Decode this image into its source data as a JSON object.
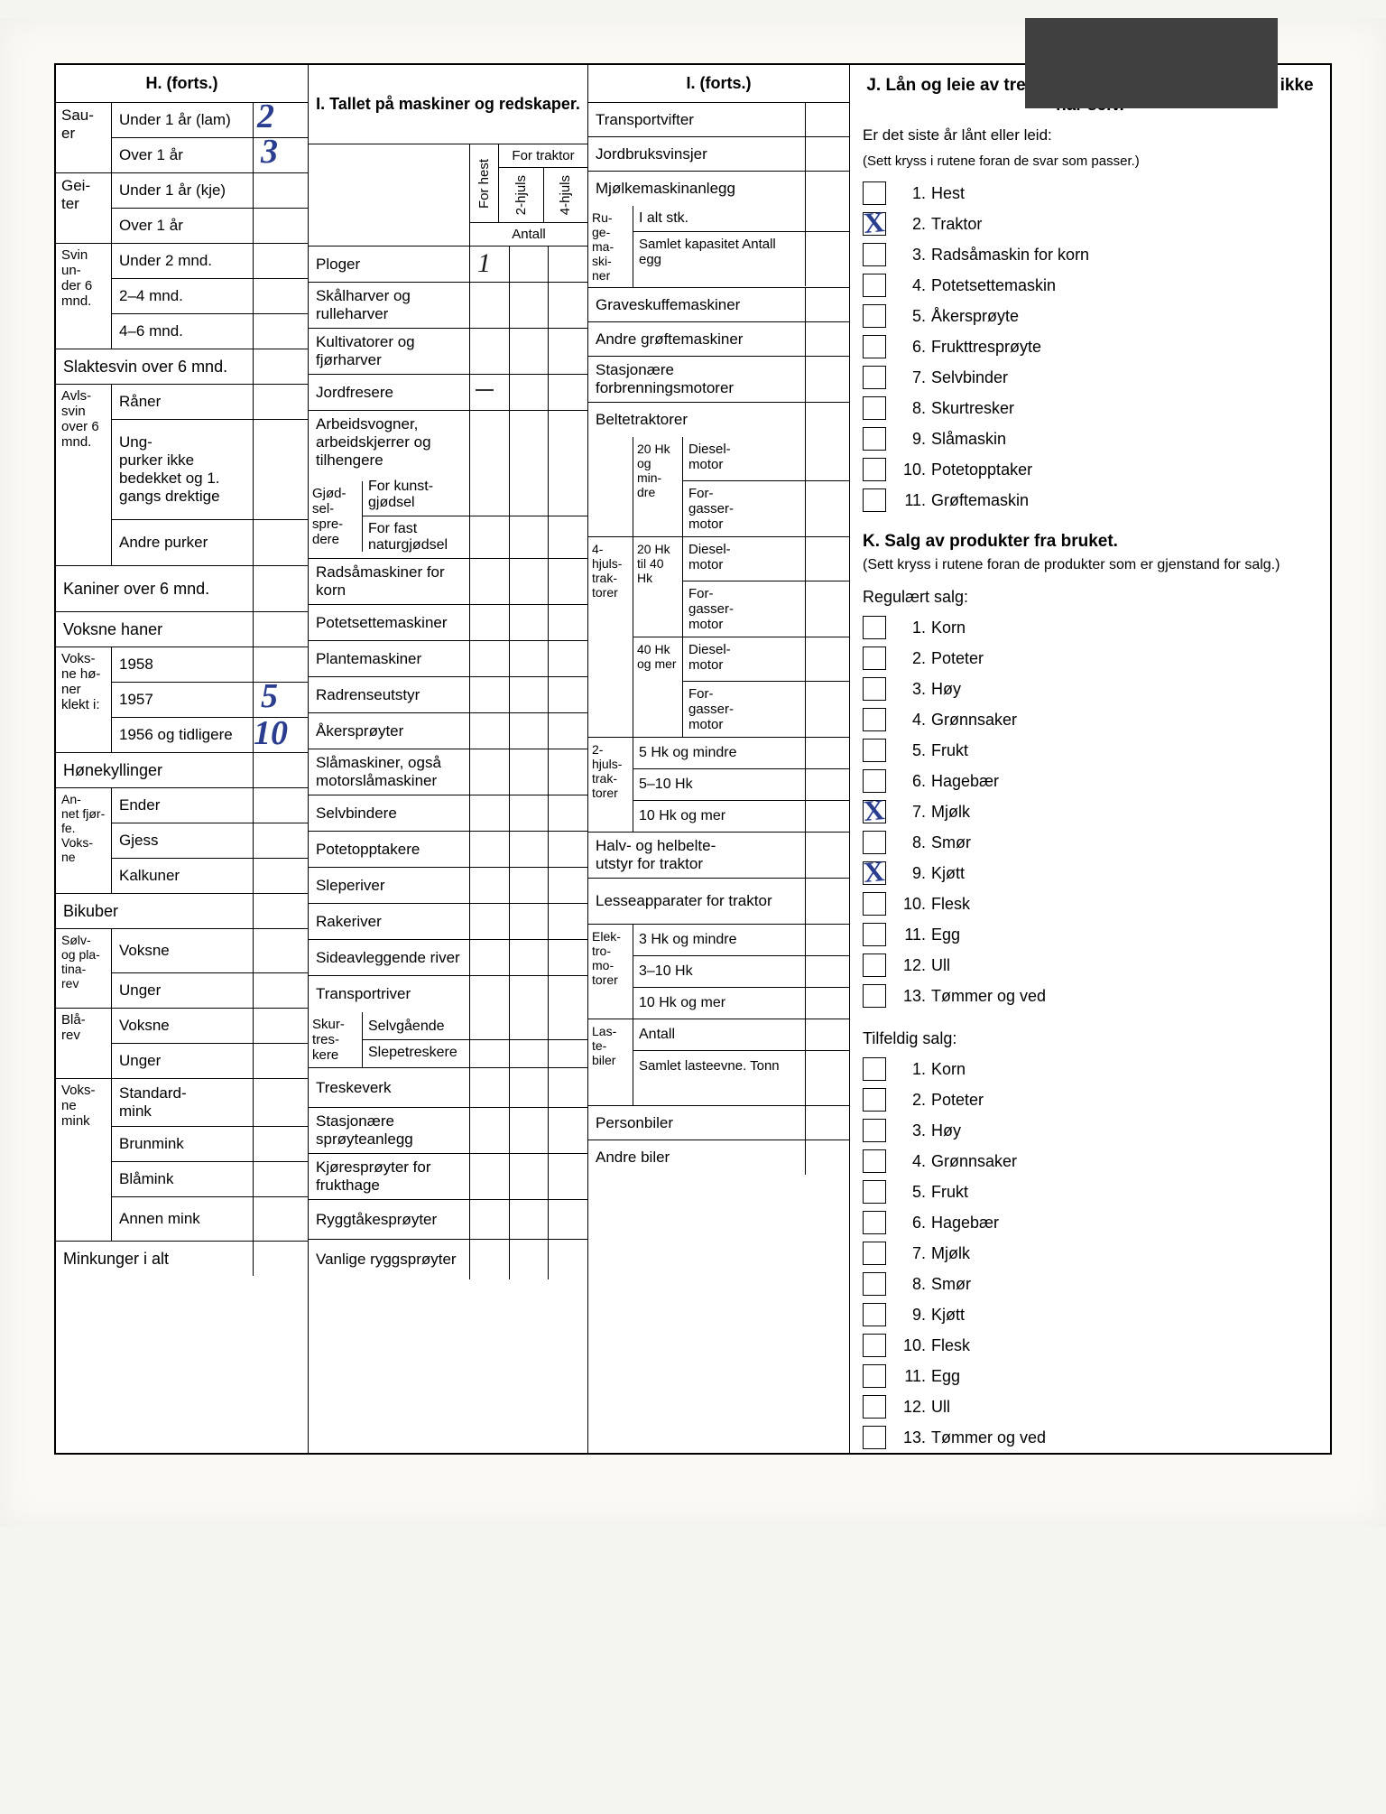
{
  "colors": {
    "ink_blue": "#2a3d8f",
    "page_bg": "#faf9f4",
    "line": "#000000"
  },
  "colH": {
    "header": "H. (forts.)",
    "sauer": {
      "label": "Sau-\ner",
      "rows": [
        {
          "label": "Under 1 år (lam)",
          "value": "2"
        },
        {
          "label": "Over 1 år",
          "value": "3"
        }
      ]
    },
    "geiter": {
      "label": "Gei-\nter",
      "rows": [
        {
          "label": "Under 1 år (kje)",
          "value": ""
        },
        {
          "label": "Over 1 år",
          "value": ""
        }
      ]
    },
    "svin6": {
      "label": "Svin un-\nder 6 mnd.",
      "rows": [
        {
          "label": "Under 2 mnd.",
          "value": ""
        },
        {
          "label": "2–4 mnd.",
          "value": ""
        },
        {
          "label": "4–6 mnd.",
          "value": ""
        }
      ]
    },
    "slaktesvin": {
      "label": "Slaktesvin over 6 mnd."
    },
    "avlssvin": {
      "label": "Avls-\nsvin over 6 mnd.",
      "raner": "Råner",
      "ungpurker": "Ung-\npurker ikke bedekket og 1. gangs drektige",
      "andrepurker": "Andre purker"
    },
    "kaniner": {
      "label": "Kaniner over 6 mnd."
    },
    "voksnehaner": {
      "label": "Voksne haner"
    },
    "honer": {
      "label": "Voks-\nne hø-\nner klekt i:",
      "rows": [
        {
          "label": "1958",
          "value": ""
        },
        {
          "label": "1957",
          "value": "5"
        },
        {
          "label": "1956 og tidligere",
          "value": "10"
        }
      ]
    },
    "honekyllinger": {
      "label": "Hønekyllinger"
    },
    "annetfjorfe": {
      "label": "An-\nnet fjør-\nfe. Voks-\nne",
      "rows": [
        {
          "label": "Ender"
        },
        {
          "label": "Gjess"
        },
        {
          "label": "Kalkuner"
        }
      ]
    },
    "bikuber": {
      "label": "Bikuber"
    },
    "solvplatinarev": {
      "label": "Sølv- og pla-\ntina-\nrev",
      "rows": [
        {
          "label": "Voksne"
        },
        {
          "label": "Unger"
        }
      ]
    },
    "blarev": {
      "label": "Blå-\nrev",
      "rows": [
        {
          "label": "Voksne"
        },
        {
          "label": "Unger"
        }
      ]
    },
    "voksnemink": {
      "label": "Voks-\nne mink",
      "rows": [
        {
          "label": "Standard-\nmink"
        },
        {
          "label": "Brunmink"
        },
        {
          "label": "Blåmink"
        },
        {
          "label": "Annen mink"
        }
      ]
    },
    "minkunger": {
      "label": "Minkunger i alt"
    }
  },
  "colI1": {
    "header": "I. Tallet på maskiner og redskaper.",
    "forTraktor": "For traktor",
    "forHest": "For hest",
    "hjuls2": "2-hjuls",
    "hjuls4": "4-hjuls",
    "antall": "Antall",
    "rows": [
      {
        "name": "Ploger",
        "val1": "1"
      },
      {
        "name": "Skålharver og rulleharver"
      },
      {
        "name": "Kultivatorer og fjørharver"
      },
      {
        "name": "Jordfresere",
        "dash": true
      },
      {
        "name": "Arbeidsvogner, arbeidskjerrer og tilhengere"
      }
    ],
    "gjodsel": {
      "label": "Gjød-\nsel-\nspre-\ndere",
      "kunst": "For kunst-\ngjødsel",
      "natur": "For fast naturgjødsel"
    },
    "rows2": [
      {
        "name": "Radsåmaskiner for korn"
      },
      {
        "name": "Potetsettemaskiner"
      },
      {
        "name": "Plantemaskiner"
      },
      {
        "name": "Radrenseutstyr"
      },
      {
        "name": "Åkersprøyter"
      },
      {
        "name": "Slåmaskiner, også motorslåmaskiner"
      },
      {
        "name": "Selvbindere"
      },
      {
        "name": "Potetopptakere"
      },
      {
        "name": "Sleperiver"
      },
      {
        "name": "Rakeriver"
      },
      {
        "name": "Sideavleggende river"
      },
      {
        "name": "Transportriver"
      }
    ],
    "skurtreskere": {
      "label": "Skur-\ntres-\nkere",
      "selvgaende": "Selvgående",
      "slepetreskere": "Slepetreskere"
    },
    "rows3": [
      {
        "name": "Treskeverk"
      },
      {
        "name": "Stasjonære sprøyteanlegg"
      },
      {
        "name": "Kjøresprøyter for frukthage"
      },
      {
        "name": "Ryggtåkesprøyter"
      },
      {
        "name": "Vanlige ryggsprøyter"
      }
    ]
  },
  "colI2": {
    "header": "I. (forts.)",
    "topRows": [
      {
        "name": "Transportvifter"
      },
      {
        "name": "Jordbruksvinsjer"
      },
      {
        "name": "Mjølkemaskinanlegg"
      }
    ],
    "rugemaskiner": {
      "label": "Ru-\nge-\nma-\nski-\nner",
      "ialt": "I alt stk.",
      "samlet": "Samlet kapasitet Antall egg"
    },
    "midRows": [
      {
        "name": "Graveskuffemaskiner"
      },
      {
        "name": "Andre grøftemaskiner"
      },
      {
        "name": "Stasjonære forbrenningsmotorer"
      },
      {
        "name": "Beltetraktorer"
      }
    ],
    "hk20": {
      "l1": "",
      "m1": "20 Hk og min-\ndre",
      "diesel": "Diesel-\nmotor",
      "forgasser": "For-\ngasser-\nmotor"
    },
    "hjuls4trak": {
      "label": "4-\nhjuls-\ntrak-\ntorer",
      "m1": "20 Hk til 40 Hk",
      "m2": "40 Hk og mer"
    },
    "hjuls2trak": {
      "label": "2-\nhjuls-\ntrak-\ntorer",
      "rows": [
        {
          "label": "5 Hk og mindre"
        },
        {
          "label": "5–10 Hk"
        },
        {
          "label": "10 Hk og mer"
        }
      ]
    },
    "halvbelte": {
      "name": "Halv- og helbelte-\nutstyr for traktor"
    },
    "lesseapp": {
      "name": "Lesseapparater for traktor"
    },
    "elektro": {
      "label": "Elek-\ntro-\nmo-\ntorer",
      "rows": [
        {
          "label": "3 Hk og mindre"
        },
        {
          "label": "3–10 Hk"
        },
        {
          "label": "10 Hk og mer"
        }
      ]
    },
    "lastebiler": {
      "label": "Las-\nte-\nbiler",
      "antall": "Antall",
      "samlet": "Samlet lasteevne. Tonn"
    },
    "personbiler": {
      "name": "Personbiler"
    },
    "andrebiler": {
      "name": "Andre biler"
    }
  },
  "colJ": {
    "header": "J. Lån og leie av trekkraft og maskiner som bruket ikke har selv.",
    "sub1": "Er det siste år lånt eller leid:",
    "sub2": "(Sett kryss i rutene foran de svar som passer.)",
    "items": [
      {
        "n": "1.",
        "t": "Hest",
        "x": false
      },
      {
        "n": "2.",
        "t": "Traktor",
        "x": true
      },
      {
        "n": "3.",
        "t": "Radsåmaskin for korn",
        "x": false
      },
      {
        "n": "4.",
        "t": "Potetsettemaskin",
        "x": false
      },
      {
        "n": "5.",
        "t": "Åkersprøyte",
        "x": false
      },
      {
        "n": "6.",
        "t": "Frukttresprøyte",
        "x": false
      },
      {
        "n": "7.",
        "t": "Selvbinder",
        "x": false
      },
      {
        "n": "8.",
        "t": "Skurtresker",
        "x": false
      },
      {
        "n": "9.",
        "t": "Slåmaskin",
        "x": false
      },
      {
        "n": "10.",
        "t": "Potetopptaker",
        "x": false
      },
      {
        "n": "11.",
        "t": "Grøftemaskin",
        "x": false
      }
    ]
  },
  "colK": {
    "header": "K. Salg av produkter fra bruket.",
    "sub": "(Sett kryss i rutene foran de produkter som er gjenstand for salg.)",
    "reg": "Regulært salg:",
    "regItems": [
      {
        "n": "1.",
        "t": "Korn",
        "x": false
      },
      {
        "n": "2.",
        "t": "Poteter",
        "x": false
      },
      {
        "n": "3.",
        "t": "Høy",
        "x": false
      },
      {
        "n": "4.",
        "t": "Grønnsaker",
        "x": false
      },
      {
        "n": "5.",
        "t": "Frukt",
        "x": false
      },
      {
        "n": "6.",
        "t": "Hagebær",
        "x": false
      },
      {
        "n": "7.",
        "t": "Mjølk",
        "x": true
      },
      {
        "n": "8.",
        "t": "Smør",
        "x": false
      },
      {
        "n": "9.",
        "t": "Kjøtt",
        "x": true
      },
      {
        "n": "10.",
        "t": "Flesk",
        "x": false
      },
      {
        "n": "11.",
        "t": "Egg",
        "x": false
      },
      {
        "n": "12.",
        "t": "Ull",
        "x": false
      },
      {
        "n": "13.",
        "t": "Tømmer og ved",
        "x": false
      }
    ],
    "tilf": "Tilfeldig salg:",
    "tilfItems": [
      {
        "n": "1.",
        "t": "Korn"
      },
      {
        "n": "2.",
        "t": "Poteter"
      },
      {
        "n": "3.",
        "t": "Høy"
      },
      {
        "n": "4.",
        "t": "Grønnsaker"
      },
      {
        "n": "5.",
        "t": "Frukt"
      },
      {
        "n": "6.",
        "t": "Hagebær"
      },
      {
        "n": "7.",
        "t": "Mjølk"
      },
      {
        "n": "8.",
        "t": "Smør"
      },
      {
        "n": "9.",
        "t": "Kjøtt"
      },
      {
        "n": "10.",
        "t": "Flesk"
      },
      {
        "n": "11.",
        "t": "Egg"
      },
      {
        "n": "12.",
        "t": "Ull"
      },
      {
        "n": "13.",
        "t": "Tømmer og ved"
      }
    ]
  }
}
